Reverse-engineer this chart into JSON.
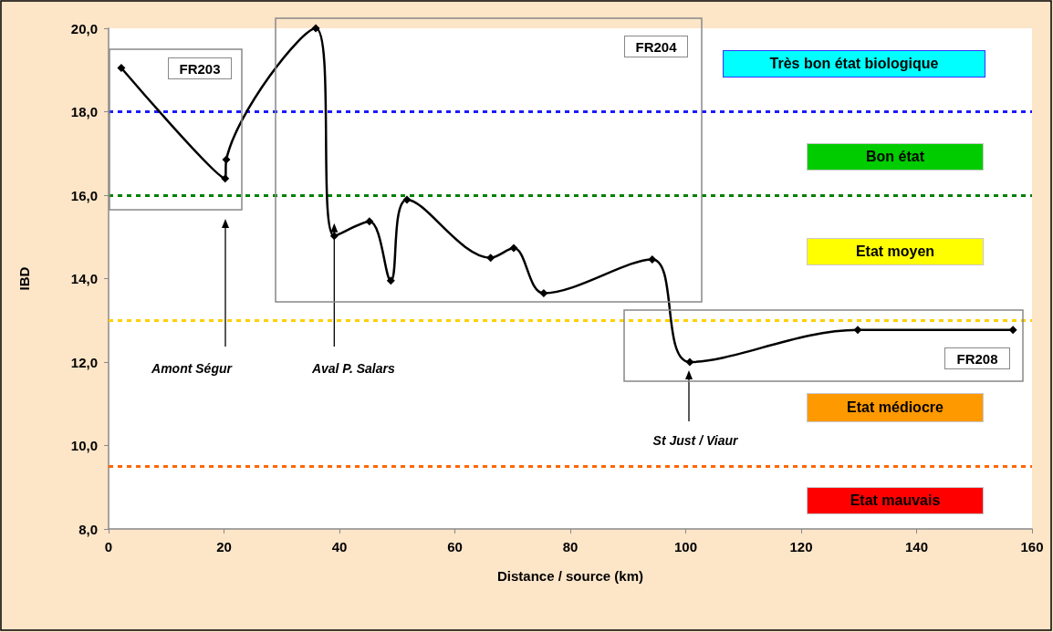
{
  "chart_data": {
    "type": "line",
    "xlabel": "Distance / source (km)",
    "ylabel": "IBD",
    "x": [
      2.2,
      20.2,
      20.4,
      35.9,
      39.1,
      45.2,
      48.9,
      51.7,
      66.2,
      70.2,
      75.4,
      94.2,
      100.7,
      129.8,
      156.7
    ],
    "series": [
      {
        "color": "#000000",
        "values": [
          19.05,
          16.4,
          16.85,
          20.0,
          15.02,
          15.37,
          13.95,
          15.89,
          14.5,
          14.73,
          13.65,
          14.46,
          12.0,
          12.77,
          12.77
        ]
      }
    ],
    "xlim": [
      0,
      160
    ],
    "xticks": [
      0,
      20,
      40,
      60,
      80,
      100,
      120,
      140,
      160
    ],
    "ylim": [
      8,
      20
    ],
    "yticks": [
      {
        "value": 8,
        "label": "8,0"
      },
      {
        "value": 10,
        "label": "10,0"
      },
      {
        "value": 12,
        "label": "12,0"
      },
      {
        "value": 14,
        "label": "14,0"
      },
      {
        "value": 16,
        "label": "16,0"
      },
      {
        "value": 18,
        "label": "18,0"
      },
      {
        "value": 20,
        "label": "20,0"
      }
    ],
    "grid": false,
    "marker": "diamond",
    "line_style": "solid",
    "ref_lines": [
      {
        "axis": "y",
        "value": 18,
        "label": null,
        "color": "#1a1aff",
        "line_style": "dashed"
      },
      {
        "axis": "y",
        "value": 16,
        "label": null,
        "color": "#008000",
        "line_style": "dashed"
      },
      {
        "axis": "y",
        "value": 13,
        "label": null,
        "color": "#ffd000",
        "line_style": "dashed"
      },
      {
        "axis": "y",
        "value": 9.5,
        "label": null,
        "color": "#ff6600",
        "line_style": "dashed"
      }
    ],
    "annotations": [
      "Amont Ségur",
      {
        "text": "Aval P. Salars",
        "x": 39.1,
        "y": 15.02
      },
      "St Just / Viaur",
      "FR203",
      "FR204",
      "FR208",
      "Très bon état biologique",
      "Bon état",
      "Etat moyen",
      "Etat médiocre",
      "Etat mauvais"
    ]
  }
}
